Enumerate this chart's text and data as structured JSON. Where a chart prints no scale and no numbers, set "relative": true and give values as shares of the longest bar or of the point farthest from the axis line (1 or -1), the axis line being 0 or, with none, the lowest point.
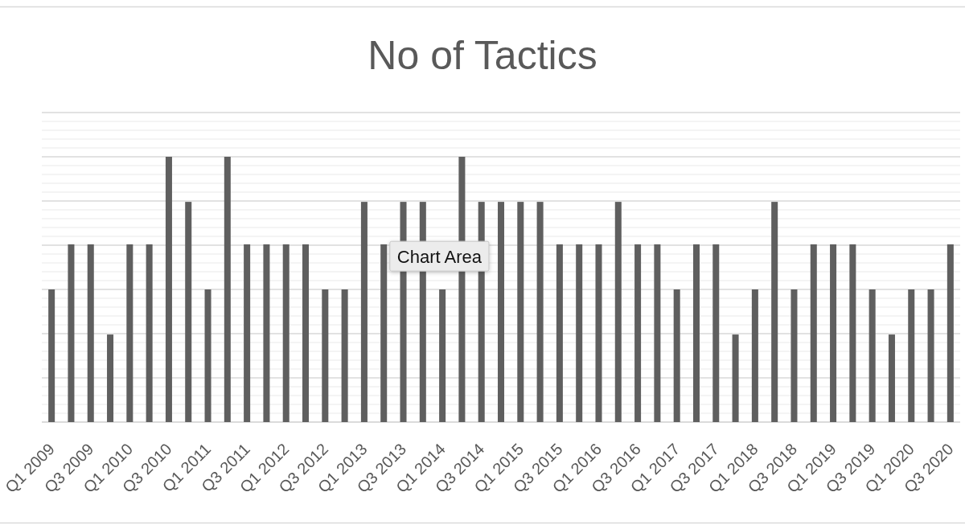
{
  "chart_data": {
    "type": "bar",
    "title": "No of Tactics",
    "categories": [
      "Q1 2009",
      null,
      "Q3 2009",
      null,
      "Q1 2010",
      null,
      "Q3 2010",
      null,
      "Q1 2011",
      null,
      "Q3 2011",
      null,
      "Q1 2012",
      null,
      "Q3 2012",
      null,
      "Q1 2013",
      null,
      "Q3 2013",
      null,
      "Q1 2014",
      null,
      "Q3 2014",
      null,
      "Q1 2015",
      null,
      "Q3 2015",
      null,
      "Q1 2016",
      null,
      "Q3 2016",
      null,
      "Q1 2017",
      null,
      "Q3 2017",
      null,
      "Q1 2018",
      null,
      "Q3 2018",
      null,
      "Q1 2019",
      null,
      "Q3 2019",
      null,
      "Q1 2020",
      null,
      "Q3 2020"
    ],
    "values": [
      0.5,
      0.67,
      0.67,
      0.33,
      0.67,
      0.67,
      1,
      0.83,
      0.5,
      1,
      0.67,
      0.67,
      0.67,
      0.67,
      0.5,
      0.5,
      0.83,
      0.67,
      0.83,
      0.83,
      0.5,
      1,
      0.83,
      0.83,
      0.83,
      0.83,
      0.67,
      0.67,
      0.67,
      0.83,
      0.67,
      0.67,
      0.5,
      0.67,
      0.67,
      0.33,
      0.5,
      0.83,
      0.5,
      0.67,
      0.67,
      0.67,
      0.5,
      0.33,
      0.5,
      0.5,
      0.67
    ],
    "color": "#5f5f5f",
    "relative": true,
    "grid": "y",
    "annotations": [
      "Chart Area"
    ]
  }
}
